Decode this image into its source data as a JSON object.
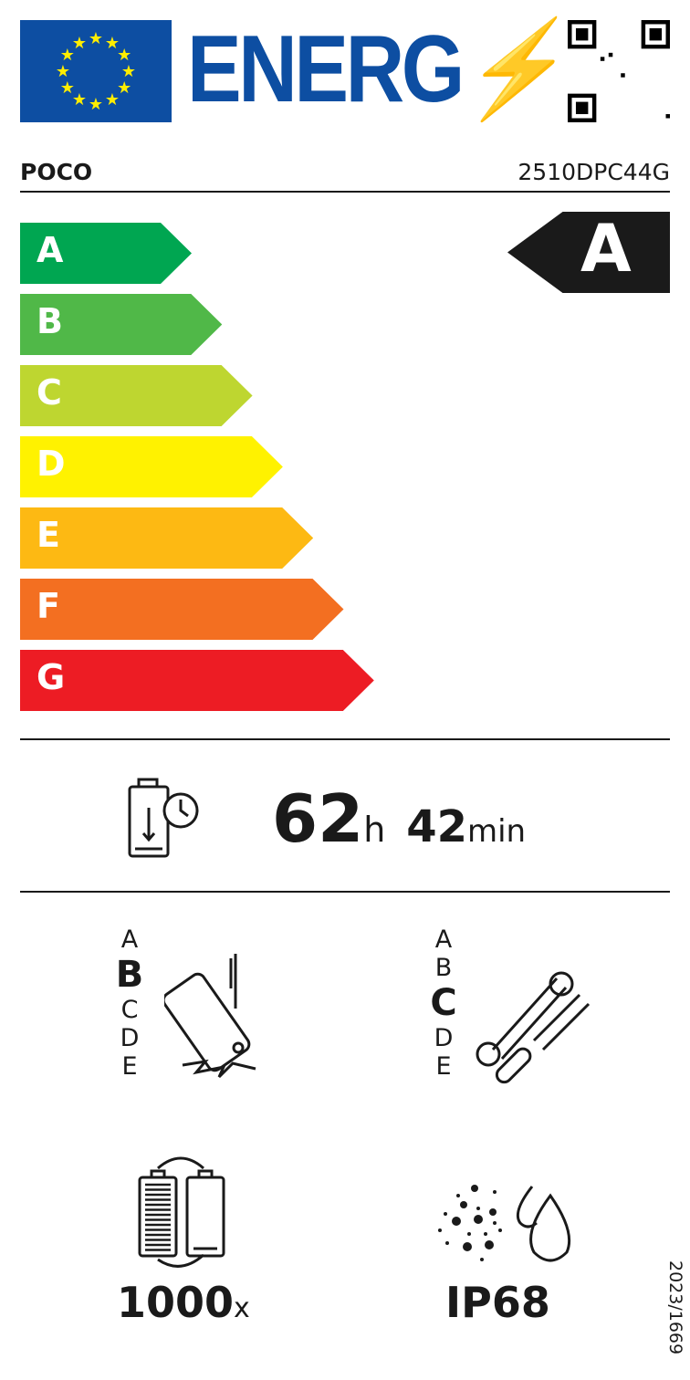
{
  "header": {
    "logo_text": "ENERG",
    "qr_code": "qr-code"
  },
  "supplier": "POCO",
  "model": "2510DPC44G",
  "energy_classes": [
    {
      "label": "A",
      "color": "#00a651"
    },
    {
      "label": "B",
      "color": "#50b848"
    },
    {
      "label": "C",
      "color": "#bed630"
    },
    {
      "label": "D",
      "color": "#fff200"
    },
    {
      "label": "E",
      "color": "#fdb913"
    },
    {
      "label": "F",
      "color": "#f36f21"
    },
    {
      "label": "G",
      "color": "#ed1c24"
    }
  ],
  "rated_class": "A",
  "battery_endurance": {
    "hours": "62",
    "hours_unit": "h",
    "minutes": "42",
    "minutes_unit": "min"
  },
  "drop_resistance": {
    "scale": [
      "A",
      "B",
      "C",
      "D",
      "E"
    ],
    "selected": "B"
  },
  "repairability": {
    "scale": [
      "A",
      "B",
      "C",
      "D",
      "E"
    ],
    "selected": "C"
  },
  "battery_cycles": {
    "value": "1000",
    "unit": "x"
  },
  "ingress_protection": "IP68",
  "regulation": "2023/1669"
}
